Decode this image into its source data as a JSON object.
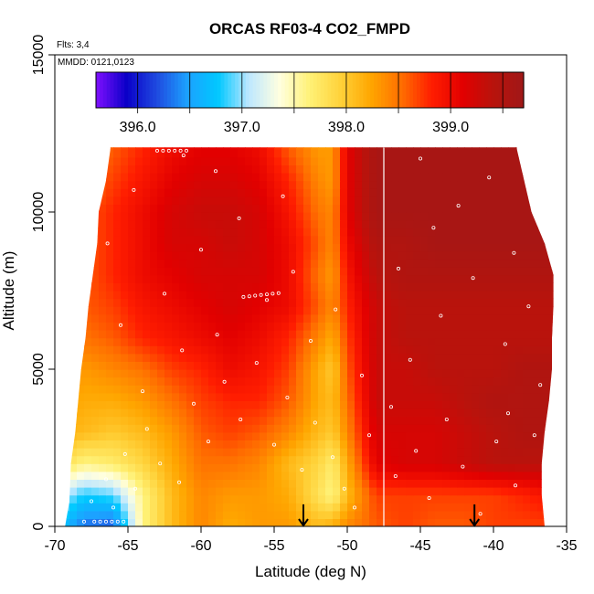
{
  "chart_data": {
    "type": "heatmap",
    "title": "ORCAS RF03-4 CO2_FMPD",
    "xlabel": "Latitude (deg N)",
    "ylabel": "Altitude (m)",
    "xlim": [
      -70,
      -35
    ],
    "ylim": [
      0,
      15000
    ],
    "x_ticks": [
      "-70",
      "-65",
      "-60",
      "-55",
      "-50",
      "-45",
      "-40",
      "-35"
    ],
    "y_ticks": [
      "0",
      "5000",
      "10000",
      "15000"
    ],
    "annotations": {
      "flights": "Flts: 3,4",
      "dates": "MMDD: 0121,0123"
    },
    "colorbar": {
      "range": [
        395.6,
        399.7
      ],
      "tick_labels": [
        "396.0",
        "397.0",
        "398.0",
        "399.0"
      ],
      "tick_values": [
        396.0,
        397.0,
        398.0,
        399.0
      ],
      "colors": [
        "#8010ff",
        "#0a00c8",
        "#1f4be0",
        "#1ca2ff",
        "#00c8ff",
        "#bde7ff",
        "#ffffe0",
        "#fff176",
        "#ffd23a",
        "#ffa600",
        "#ff6e00",
        "#ff1d00",
        "#e20000",
        "#b8130c",
        "#a01818"
      ]
    },
    "domain_edge_left": [
      [
        0,
        -69.3
      ],
      [
        800,
        -69.0
      ],
      [
        2000,
        -68.9
      ],
      [
        3000,
        -68.6
      ],
      [
        4000,
        -68.4
      ],
      [
        5000,
        -68.2
      ],
      [
        6000,
        -67.9
      ],
      [
        7000,
        -67.7
      ],
      [
        8000,
        -67.4
      ],
      [
        9000,
        -67.1
      ],
      [
        10000,
        -67.0
      ],
      [
        11000,
        -66.5
      ],
      [
        12000,
        -66.2
      ]
    ],
    "domain_edge_right": [
      [
        0,
        -36.5
      ],
      [
        1000,
        -36.7
      ],
      [
        2000,
        -36.7
      ],
      [
        3000,
        -36.5
      ],
      [
        4000,
        -36.2
      ],
      [
        5000,
        -36.0
      ],
      [
        6000,
        -36.0
      ],
      [
        7000,
        -35.9
      ],
      [
        8000,
        -35.9
      ],
      [
        9000,
        -36.5
      ],
      [
        10000,
        -37.4
      ],
      [
        11000,
        -37.9
      ],
      [
        12000,
        -38.4
      ]
    ],
    "co2_field": {
      "latitudes": [
        -70,
        -68,
        -66,
        -64,
        -62,
        -60,
        -58,
        -56,
        -54,
        -52,
        -51,
        -50,
        -48,
        -46,
        -44,
        -42,
        -40,
        -38,
        -36
      ],
      "altitudes": [
        0,
        1000,
        2000,
        3000,
        4000,
        5000,
        6000,
        7000,
        8000,
        9000,
        10000,
        11000,
        12000
      ],
      "values_ppm": [
        [
          396.8,
          396.3,
          396.2,
          397.6,
          398.1,
          398.4,
          398.2,
          398.3,
          398.3,
          398.1,
          398.2,
          398.4,
          398.6,
          398.7,
          398.6,
          398.6,
          398.7,
          398.7,
          398.7
        ],
        [
          397.2,
          396.8,
          396.9,
          397.6,
          398.1,
          398.4,
          398.3,
          398.3,
          398.2,
          397.8,
          397.6,
          398.1,
          398.7,
          398.7,
          398.7,
          398.7,
          398.7,
          398.8,
          398.9
        ],
        [
          397.9,
          397.6,
          397.7,
          397.9,
          398.2,
          398.5,
          398.5,
          398.4,
          398.1,
          397.9,
          397.7,
          398.2,
          399.1,
          399.2,
          399.2,
          399.3,
          399.4,
          399.4,
          399.4
        ],
        [
          398.2,
          398.1,
          398.0,
          398.1,
          398.3,
          398.6,
          398.7,
          398.6,
          398.4,
          398.1,
          398.0,
          398.4,
          399.2,
          399.2,
          399.2,
          399.3,
          399.4,
          399.5,
          399.5
        ],
        [
          398.3,
          398.2,
          398.2,
          398.3,
          398.5,
          398.7,
          398.8,
          398.8,
          398.6,
          398.2,
          398.1,
          398.5,
          399.3,
          399.3,
          399.3,
          399.4,
          399.5,
          399.5,
          399.5
        ],
        [
          398.4,
          398.3,
          398.4,
          398.5,
          398.7,
          398.8,
          399.0,
          398.9,
          398.7,
          398.2,
          398.0,
          398.6,
          399.3,
          399.3,
          399.4,
          399.4,
          399.4,
          399.5,
          399.5
        ],
        [
          398.5,
          398.5,
          398.6,
          398.8,
          398.9,
          399.0,
          399.1,
          399.0,
          398.8,
          398.4,
          398.2,
          398.7,
          399.3,
          399.4,
          399.4,
          399.4,
          399.4,
          399.4,
          399.4
        ],
        [
          398.6,
          398.6,
          398.7,
          398.9,
          399.0,
          399.1,
          399.2,
          399.1,
          399.0,
          398.6,
          398.4,
          398.8,
          399.3,
          399.4,
          399.4,
          399.4,
          399.4,
          399.4,
          399.4
        ],
        [
          398.5,
          398.6,
          398.8,
          399.0,
          399.1,
          399.2,
          399.2,
          399.2,
          399.0,
          398.5,
          398.3,
          398.9,
          399.4,
          399.5,
          399.5,
          399.5,
          399.5,
          399.5,
          399.5
        ],
        [
          398.5,
          398.6,
          398.8,
          399.0,
          399.2,
          399.2,
          399.3,
          399.2,
          399.0,
          398.6,
          398.4,
          399.0,
          399.5,
          399.5,
          399.6,
          399.6,
          399.6,
          399.6,
          399.6
        ],
        [
          398.4,
          398.6,
          398.8,
          399.0,
          399.2,
          399.3,
          399.3,
          399.2,
          398.9,
          398.5,
          398.4,
          399.1,
          399.6,
          399.6,
          399.6,
          399.6,
          399.6,
          399.6,
          399.6
        ],
        [
          398.3,
          398.5,
          398.7,
          398.9,
          399.1,
          399.2,
          399.2,
          399.1,
          398.8,
          398.4,
          398.3,
          399.1,
          399.6,
          399.6,
          399.6,
          399.6,
          399.6,
          399.6,
          399.6
        ],
        [
          398.2,
          398.4,
          398.6,
          398.8,
          399.0,
          399.1,
          399.1,
          399.0,
          398.6,
          398.3,
          398.3,
          399.1,
          399.6,
          399.6,
          399.6,
          399.6,
          399.6,
          399.6,
          399.6
        ]
      ]
    },
    "markers": {
      "vertical_line_lat": -47.5,
      "arrows_lat": [
        -53.0,
        -41.3
      ],
      "arrow_top_alt": 700,
      "arrow_bottom_alt": 0
    },
    "sample_points": [
      [
        -68.0,
        150
      ],
      [
        -67.5,
        800
      ],
      [
        -66.5,
        1500
      ],
      [
        -66.0,
        600
      ],
      [
        -65.2,
        2300
      ],
      [
        -64.5,
        1200
      ],
      [
        -63.7,
        3100
      ],
      [
        -62.8,
        2000
      ],
      [
        -61.5,
        1400
      ],
      [
        -60.5,
        3900
      ],
      [
        -59.5,
        2700
      ],
      [
        -58.4,
        4600
      ],
      [
        -57.3,
        3400
      ],
      [
        -56.2,
        5200
      ],
      [
        -55.0,
        2600
      ],
      [
        -54.1,
        4100
      ],
      [
        -53.1,
        1800
      ],
      [
        -52.2,
        3300
      ],
      [
        -51.0,
        2200
      ],
      [
        -50.2,
        1200
      ],
      [
        -49.5,
        600
      ],
      [
        -48.5,
        2900
      ],
      [
        -46.7,
        1600
      ],
      [
        -45.3,
        2400
      ],
      [
        -44.4,
        900
      ],
      [
        -43.2,
        3400
      ],
      [
        -42.1,
        1900
      ],
      [
        -40.9,
        400
      ],
      [
        -39.8,
        2700
      ],
      [
        -38.5,
        1300
      ],
      [
        -37.2,
        2900
      ],
      [
        -64.0,
        4300
      ],
      [
        -61.3,
        5600
      ],
      [
        -58.9,
        6100
      ],
      [
        -55.5,
        7200
      ],
      [
        -53.7,
        8100
      ],
      [
        -60.0,
        8800
      ],
      [
        -62.5,
        7400
      ],
      [
        -65.5,
        6400
      ],
      [
        -66.4,
        9000
      ],
      [
        -57.4,
        9800
      ],
      [
        -54.4,
        10500
      ],
      [
        -59.0,
        11300
      ],
      [
        -64.6,
        10700
      ],
      [
        -61.2,
        11800
      ],
      [
        -45.7,
        5300
      ],
      [
        -43.6,
        6700
      ],
      [
        -41.4,
        7900
      ],
      [
        -39.2,
        5800
      ],
      [
        -37.6,
        7000
      ],
      [
        -46.5,
        8200
      ],
      [
        -44.1,
        9500
      ],
      [
        -42.4,
        10200
      ],
      [
        -40.3,
        11100
      ],
      [
        -38.6,
        8700
      ],
      [
        -45.0,
        11700
      ],
      [
        -47.0,
        3800
      ],
      [
        -49.0,
        4800
      ],
      [
        -50.8,
        6900
      ],
      [
        -52.5,
        5900
      ],
      [
        -36.8,
        4500
      ],
      [
        -39.0,
        3600
      ]
    ],
    "sample_track": [
      [
        -57.1,
        7300
      ],
      [
        -56.7,
        7320
      ],
      [
        -56.3,
        7340
      ],
      [
        -55.9,
        7360
      ],
      [
        -55.5,
        7380
      ],
      [
        -55.1,
        7400
      ],
      [
        -54.7,
        7420
      ],
      [
        -67.3,
        150
      ],
      [
        -66.9,
        150
      ],
      [
        -66.5,
        150
      ],
      [
        -66.1,
        150
      ],
      [
        -65.7,
        150
      ],
      [
        -65.3,
        150
      ],
      [
        -63.0,
        11950
      ],
      [
        -62.6,
        11950
      ],
      [
        -62.2,
        11950
      ],
      [
        -61.8,
        11950
      ],
      [
        -61.4,
        11950
      ],
      [
        -61.0,
        11950
      ]
    ]
  }
}
